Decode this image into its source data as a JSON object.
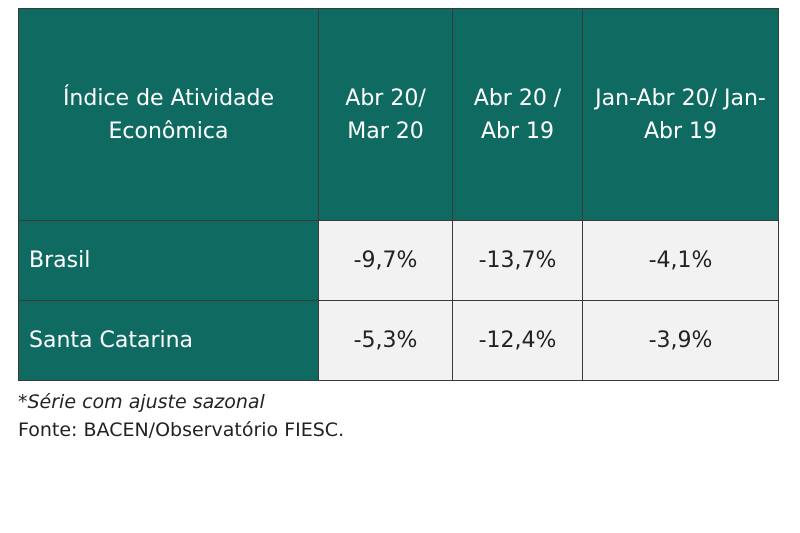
{
  "table": {
    "header": [
      "Índice de Atividade Econômica",
      "Abr 20/ Mar 20",
      "Abr 20 / Abr 19",
      "Jan-Abr 20/ Jan-Abr 19"
    ],
    "rows": [
      [
        "Brasil",
        "-9,7%",
        "-13,7%",
        "-4,1%"
      ],
      [
        "Santa Catarina",
        "-5,3%",
        "-12,4%",
        "-3,9%"
      ]
    ]
  },
  "notes": [
    "*Série com ajuste sazonal",
    "Fonte: BACEN/Observatório FIESC."
  ]
}
